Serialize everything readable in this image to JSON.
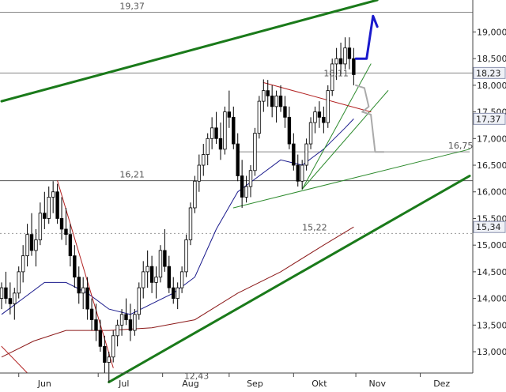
{
  "chart_data": {
    "type": "candlestick",
    "title": "",
    "xlabel": "",
    "ylabel": "",
    "ylim": [
      12.6,
      19.6
    ],
    "y_ticks": [
      "19,000",
      "18,500",
      "18,000",
      "17,500",
      "17,000",
      "16,500",
      "16,000",
      "15,500",
      "15,000",
      "14,500",
      "14,000",
      "13,500",
      "13,000"
    ],
    "y_tick_values": [
      19.0,
      18.5,
      18.0,
      17.5,
      17.0,
      16.5,
      16.0,
      15.5,
      15.0,
      14.5,
      14.0,
      13.5,
      13.0
    ],
    "month_labels": [
      "Jun",
      "Jul",
      "Aug",
      "Sep",
      "Okt",
      "Nov",
      "Dez"
    ],
    "month_label_day": [
      20,
      57,
      88,
      118,
      148,
      175,
      205
    ],
    "month_boundaries": [
      8,
      45,
      75,
      106,
      136,
      165,
      195
    ],
    "grid": false,
    "price_levels": [
      {
        "value": 19.37,
        "label": "19,37"
      },
      {
        "value": 18.23,
        "label": "18,23"
      },
      {
        "value": 16.21,
        "label": "16,21"
      },
      {
        "value": 15.22,
        "label": "15,22"
      }
    ],
    "annotations": [
      {
        "text": "19,37",
        "day": 55,
        "value": 19.37
      },
      {
        "text": "18,11",
        "day": 150,
        "value": 18.11
      },
      {
        "text": "16,21",
        "day": 55,
        "value": 16.21
      },
      {
        "text": "15,22",
        "day": 140,
        "value": 15.22
      },
      {
        "text": "12,43",
        "day": 85,
        "value": 12.43
      },
      {
        "text": "16,75",
        "day": 208,
        "value": 16.75
      }
    ],
    "right_tags": [
      {
        "text": "18,23",
        "value": 18.23
      },
      {
        "text": "17,37",
        "value": 17.37
      },
      {
        "text": "15,34",
        "value": 15.34
      }
    ],
    "candles": [
      [
        0,
        14.0,
        14.3,
        13.8,
        14.2
      ],
      [
        2,
        14.2,
        14.5,
        13.9,
        14.0
      ],
      [
        4,
        14.0,
        14.3,
        13.7,
        13.9
      ],
      [
        6,
        13.9,
        14.2,
        13.6,
        14.1
      ],
      [
        8,
        14.1,
        14.6,
        14.0,
        14.5
      ],
      [
        10,
        14.5,
        15.0,
        14.3,
        14.8
      ],
      [
        12,
        14.8,
        15.4,
        14.6,
        15.2
      ],
      [
        14,
        15.2,
        15.6,
        14.8,
        14.9
      ],
      [
        16,
        14.9,
        15.3,
        14.6,
        15.1
      ],
      [
        18,
        15.1,
        15.8,
        15.0,
        15.6
      ],
      [
        20,
        15.6,
        16.0,
        15.3,
        15.5
      ],
      [
        22,
        15.5,
        16.1,
        15.4,
        15.9
      ],
      [
        24,
        15.9,
        16.2,
        15.6,
        16.0
      ],
      [
        26,
        16.0,
        16.15,
        15.4,
        15.5
      ],
      [
        28,
        15.5,
        15.9,
        15.1,
        15.3
      ],
      [
        30,
        15.3,
        15.7,
        15.0,
        15.2
      ],
      [
        32,
        15.2,
        15.4,
        14.6,
        14.8
      ],
      [
        34,
        14.8,
        15.0,
        14.2,
        14.4
      ],
      [
        36,
        14.4,
        14.6,
        13.9,
        14.1
      ],
      [
        38,
        14.1,
        14.4,
        13.8,
        14.2
      ],
      [
        40,
        14.2,
        14.4,
        13.6,
        13.8
      ],
      [
        42,
        13.8,
        14.0,
        13.4,
        13.6
      ],
      [
        44,
        13.6,
        13.9,
        13.2,
        13.4
      ],
      [
        46,
        13.4,
        13.6,
        13.0,
        13.1
      ],
      [
        48,
        13.1,
        13.3,
        12.6,
        12.8
      ],
      [
        50,
        12.8,
        13.0,
        12.43,
        12.9
      ],
      [
        52,
        12.9,
        13.4,
        12.8,
        13.3
      ],
      [
        54,
        13.3,
        13.6,
        13.1,
        13.5
      ],
      [
        56,
        13.5,
        13.8,
        13.3,
        13.7
      ],
      [
        58,
        13.7,
        14.0,
        13.5,
        13.6
      ],
      [
        60,
        13.6,
        13.9,
        13.2,
        13.4
      ],
      [
        62,
        13.4,
        13.8,
        13.3,
        13.7
      ],
      [
        64,
        13.7,
        14.3,
        13.6,
        14.2
      ],
      [
        66,
        14.2,
        14.7,
        14.0,
        14.5
      ],
      [
        68,
        14.5,
        14.9,
        14.2,
        14.6
      ],
      [
        70,
        14.6,
        14.8,
        14.1,
        14.3
      ],
      [
        72,
        14.3,
        14.6,
        14.0,
        14.4
      ],
      [
        74,
        14.4,
        15.0,
        14.3,
        14.9
      ],
      [
        76,
        14.9,
        15.3,
        14.5,
        14.6
      ],
      [
        78,
        14.6,
        14.8,
        14.1,
        14.2
      ],
      [
        80,
        14.2,
        14.4,
        13.9,
        14.0
      ],
      [
        82,
        14.0,
        14.3,
        13.8,
        14.2
      ],
      [
        84,
        14.2,
        14.6,
        14.1,
        14.5
      ],
      [
        86,
        14.5,
        15.2,
        14.4,
        15.1
      ],
      [
        88,
        15.1,
        15.8,
        15.0,
        15.7
      ],
      [
        90,
        15.7,
        16.3,
        15.6,
        16.2
      ],
      [
        92,
        16.2,
        16.7,
        16.0,
        16.5
      ],
      [
        94,
        16.5,
        16.9,
        16.3,
        16.7
      ],
      [
        96,
        16.7,
        17.1,
        16.5,
        17.0
      ],
      [
        98,
        17.0,
        17.4,
        16.8,
        17.2
      ],
      [
        100,
        17.2,
        17.5,
        16.9,
        17.0
      ],
      [
        102,
        17.0,
        17.3,
        16.6,
        16.8
      ],
      [
        104,
        16.8,
        17.6,
        16.7,
        17.5
      ],
      [
        106,
        17.5,
        17.9,
        17.2,
        17.4
      ],
      [
        108,
        17.4,
        17.6,
        16.8,
        16.9
      ],
      [
        110,
        16.9,
        17.1,
        16.2,
        16.3
      ],
      [
        112,
        16.3,
        16.6,
        15.7,
        15.9
      ],
      [
        114,
        15.9,
        16.3,
        15.8,
        16.1
      ],
      [
        116,
        16.1,
        16.5,
        15.9,
        16.4
      ],
      [
        118,
        16.4,
        17.2,
        16.3,
        17.1
      ],
      [
        120,
        17.1,
        17.8,
        17.0,
        17.7
      ],
      [
        122,
        17.7,
        18.11,
        17.5,
        17.9
      ],
      [
        124,
        17.9,
        18.1,
        17.6,
        17.8
      ],
      [
        126,
        17.8,
        18.0,
        17.4,
        17.6
      ],
      [
        128,
        17.6,
        17.9,
        17.3,
        17.8
      ],
      [
        130,
        17.8,
        18.0,
        17.5,
        17.6
      ],
      [
        132,
        17.6,
        17.8,
        17.2,
        17.4
      ],
      [
        134,
        17.4,
        17.6,
        16.8,
        16.9
      ],
      [
        136,
        16.9,
        17.1,
        16.4,
        16.5
      ],
      [
        138,
        16.5,
        16.7,
        16.1,
        16.2
      ],
      [
        140,
        16.2,
        16.6,
        16.05,
        16.5
      ],
      [
        142,
        16.5,
        17.0,
        16.4,
        16.9
      ],
      [
        144,
        16.9,
        17.4,
        16.8,
        17.3
      ],
      [
        146,
        17.3,
        17.6,
        17.1,
        17.5
      ],
      [
        148,
        17.5,
        17.7,
        17.2,
        17.4
      ],
      [
        150,
        17.4,
        17.6,
        17.1,
        17.3
      ],
      [
        152,
        17.3,
        18.0,
        17.2,
        17.9
      ],
      [
        154,
        17.9,
        18.5,
        17.8,
        18.4
      ],
      [
        156,
        18.4,
        18.7,
        18.1,
        18.5
      ],
      [
        158,
        18.5,
        18.8,
        18.2,
        18.4
      ],
      [
        160,
        18.4,
        18.9,
        18.3,
        18.7
      ],
      [
        162,
        18.7,
        18.9,
        18.3,
        18.5
      ],
      [
        164,
        18.5,
        18.7,
        18.0,
        18.2
      ]
    ],
    "series": [
      {
        "type": "moving-average",
        "color": "#1a1a8c",
        "points": [
          [
            0,
            13.7
          ],
          [
            10,
            14.0
          ],
          [
            20,
            14.3
          ],
          [
            30,
            14.3
          ],
          [
            40,
            14.1
          ],
          [
            50,
            13.8
          ],
          [
            60,
            13.7
          ],
          [
            70,
            13.9
          ],
          [
            80,
            14.1
          ],
          [
            90,
            14.4
          ],
          [
            100,
            15.3
          ],
          [
            110,
            16.0
          ],
          [
            120,
            16.3
          ],
          [
            130,
            16.6
          ],
          [
            140,
            16.5
          ],
          [
            150,
            16.8
          ],
          [
            160,
            17.2
          ],
          [
            164,
            17.37
          ]
        ]
      },
      {
        "type": "moving-average",
        "color": "#8c1a1a",
        "points": [
          [
            0,
            12.9
          ],
          [
            15,
            13.2
          ],
          [
            30,
            13.4
          ],
          [
            50,
            13.4
          ],
          [
            70,
            13.45
          ],
          [
            90,
            13.6
          ],
          [
            110,
            14.1
          ],
          [
            130,
            14.5
          ],
          [
            150,
            15.0
          ],
          [
            164,
            15.34
          ]
        ]
      }
    ],
    "trendlines": [
      {
        "color": "#1a7a1a",
        "width": 3,
        "from": [
          0,
          17.7
        ],
        "to": [
          175,
          19.6
        ]
      },
      {
        "color": "#1a7a1a",
        "width": 3,
        "from": [
          50,
          12.43
        ],
        "to": [
          218,
          16.3
        ]
      },
      {
        "color": "#2e8b2e",
        "width": 1,
        "from": [
          108,
          15.7
        ],
        "to": [
          218,
          16.8
        ]
      },
      {
        "color": "#2e8b2e",
        "width": 1,
        "from": [
          140,
          16.05
        ],
        "to": [
          172,
          18.4
        ]
      },
      {
        "color": "#2e8b2e",
        "width": 1,
        "from": [
          140,
          16.05
        ],
        "to": [
          180,
          17.9
        ]
      },
      {
        "color": "#b22222",
        "width": 1,
        "from": [
          26,
          16.21
        ],
        "to": [
          52,
          12.7
        ]
      },
      {
        "color": "#b22222",
        "width": 1,
        "from": [
          0,
          13.1
        ],
        "to": [
          12,
          12.6
        ]
      },
      {
        "color": "#b22222",
        "width": 1,
        "from": [
          122,
          18.05
        ],
        "to": [
          172,
          17.5
        ]
      }
    ],
    "horizontal_segments": [
      {
        "value": 16.75,
        "from": 110,
        "to": 218,
        "color": "#888888"
      }
    ],
    "projections": [
      {
        "color": "#1a1acc",
        "width": 3,
        "points": [
          [
            165,
            18.5
          ],
          [
            170,
            18.5
          ],
          [
            173,
            19.3
          ],
          [
            175,
            19.1
          ]
        ]
      },
      {
        "color": "#aaaaaa",
        "width": 2,
        "points": [
          [
            165,
            18.0
          ],
          [
            169,
            17.95
          ],
          [
            171,
            17.6
          ],
          [
            168,
            17.5
          ],
          [
            172,
            17.45
          ],
          [
            174,
            16.75
          ],
          [
            178,
            16.75
          ]
        ]
      }
    ]
  }
}
